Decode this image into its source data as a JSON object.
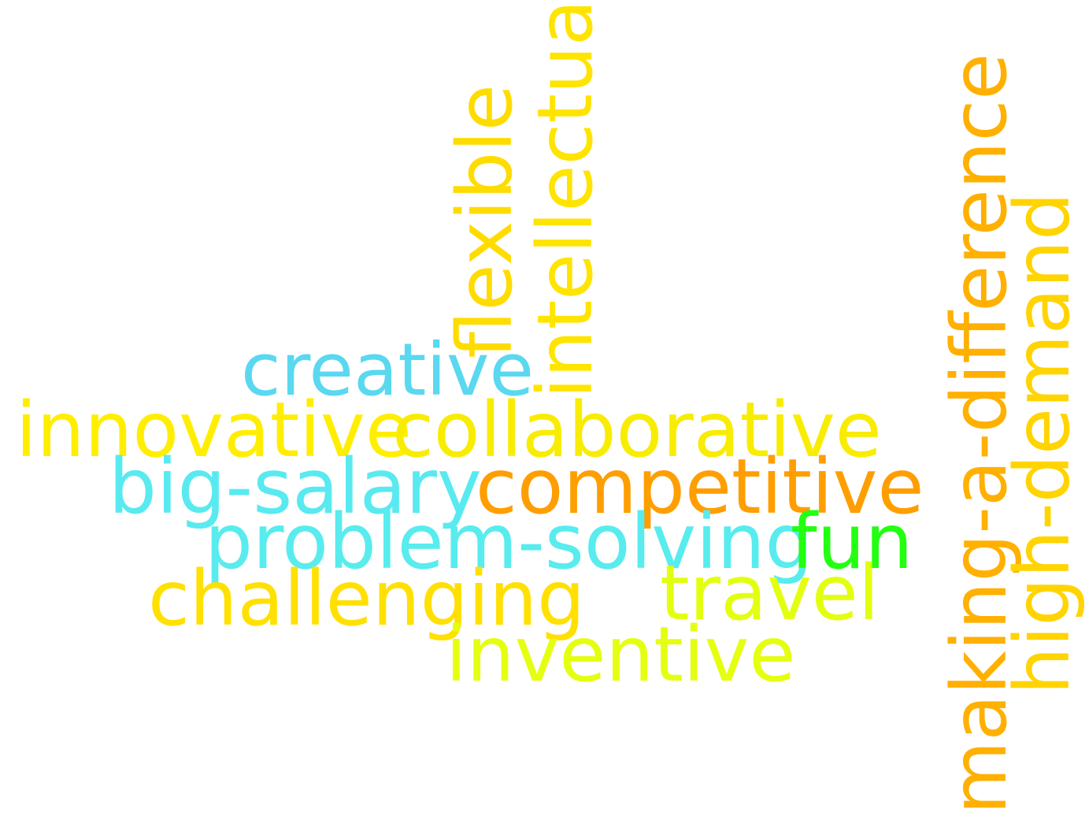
{
  "cloud": {
    "words": {
      "creative": {
        "text": "creative",
        "color": "#5ad8f0"
      },
      "innovative": {
        "text": "innovative",
        "color": "#ffee00"
      },
      "collaborative": {
        "text": "collaborative",
        "color": "#f8ec00"
      },
      "big_salary": {
        "text": "big-salary",
        "color": "#58eaf0"
      },
      "competitive": {
        "text": "competitive",
        "color": "#ff9e00"
      },
      "problem_solving": {
        "text": "problem-solving",
        "color": "#58ecee"
      },
      "fun": {
        "text": "fun",
        "color": "#22ff11"
      },
      "challenging": {
        "text": "challenging",
        "color": "#ffe000"
      },
      "travel": {
        "text": "travel",
        "color": "#e2ff10"
      },
      "inventive": {
        "text": "inventive",
        "color": "#e4ff10"
      },
      "flexible": {
        "text": "flexible",
        "color": "#ffdc00"
      },
      "intellectual": {
        "text": "intellectual",
        "color": "#ffe400"
      },
      "making_a_difference": {
        "text": "making-a-difference",
        "color": "#ffb000"
      },
      "high_demand": {
        "text": "high-demand",
        "color": "#ffd400"
      }
    }
  }
}
